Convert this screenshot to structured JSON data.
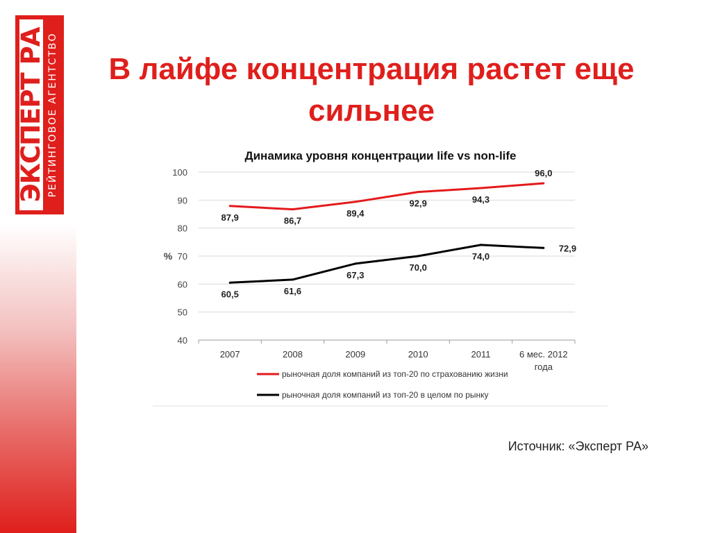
{
  "title": "В лайфе концентрация растет еще сильнее",
  "logo": {
    "main": "ЭКСПЕРТ РА",
    "sub": "РЕЙТИНГОВОЕ АГЕНТСТВО"
  },
  "colors": {
    "brand": "#df1f1c",
    "life_series": "#e31a1c",
    "market_series": "#000000"
  },
  "chart_data": {
    "type": "line",
    "title": "Динамика уровня концентрации life vs non-life",
    "ylabel": "%",
    "xlabel": "",
    "categories": [
      "2007",
      "2008",
      "2009",
      "2010",
      "2011",
      "6 мес. 2012 года"
    ],
    "category_lines": [
      [
        "2007"
      ],
      [
        "2008"
      ],
      [
        "2009"
      ],
      [
        "2010"
      ],
      [
        "2011"
      ],
      [
        "6 мес. 2012",
        "года"
      ]
    ],
    "ylim": [
      40,
      100
    ],
    "yticks": [
      40,
      50,
      60,
      70,
      80,
      90,
      100
    ],
    "grid": true,
    "legend_position": "bottom",
    "series": [
      {
        "name": "рыночная доля компаний из топ-20 по страхованию жизни",
        "color": "#e31a1c",
        "values": [
          87.9,
          86.7,
          89.4,
          92.9,
          94.3,
          96.0
        ],
        "labels": [
          "87,9",
          "86,7",
          "89,4",
          "92,9",
          "94,3",
          "96,0"
        ],
        "label_side": [
          "below",
          "below",
          "below",
          "below",
          "below",
          "above"
        ]
      },
      {
        "name": "рыночная доля компаний из топ-20 в целом по рынку",
        "color": "#000000",
        "values": [
          60.5,
          61.6,
          67.3,
          70.0,
          74.0,
          72.9
        ],
        "labels": [
          "60,5",
          "61,6",
          "67,3",
          "70,0",
          "74,0",
          "72,9"
        ],
        "label_side": [
          "below",
          "below",
          "below",
          "below",
          "below",
          "right"
        ]
      }
    ]
  },
  "source": "Источник: «Эксперт РА»"
}
